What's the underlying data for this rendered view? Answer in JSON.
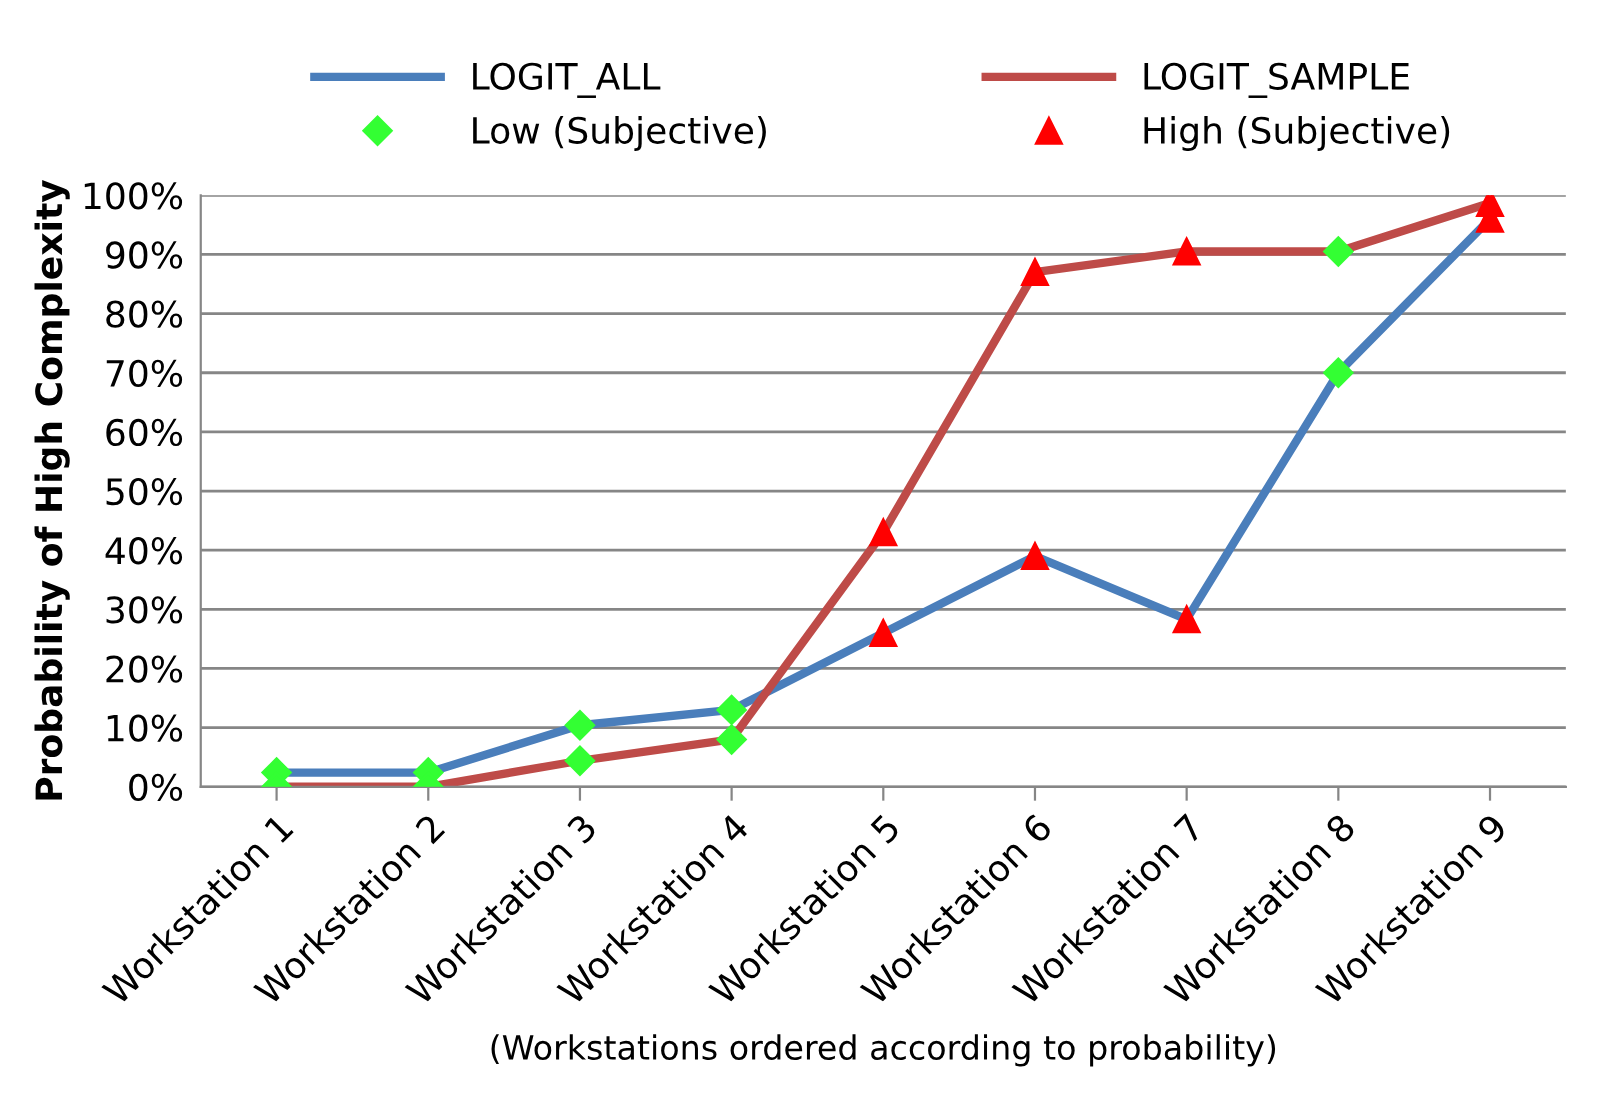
{
  "chart_data": {
    "type": "line",
    "xlabel": "(Workstations ordered according to probability)",
    "ylabel": "Probability of High Complexity",
    "categories": [
      "Workstation 1",
      "Workstation 2",
      "Workstation 3",
      "Workstation 4",
      "Workstation 5",
      "Workstation 6",
      "Workstation 7",
      "Workstation 8",
      "Workstation 9"
    ],
    "series": [
      {
        "name": "LOGIT_ALL",
        "color": "#4a7ebb",
        "marker": "none",
        "values": [
          2.4,
          2.4,
          10.4,
          13,
          26,
          39,
          28.3,
          70,
          96
        ]
      },
      {
        "name": "LOGIT_SAMPLE",
        "color": "#be4b48",
        "marker": "none",
        "values": [
          0,
          0,
          4.4,
          8,
          43,
          87,
          90.5,
          90.5,
          98.7
        ]
      },
      {
        "name": "Low (Subjective)",
        "type": "scatter",
        "color": "#33ff33",
        "marker": "diamond",
        "x": [
          "Workstation 1",
          "Workstation 1",
          "Workstation 2",
          "Workstation 2",
          "Workstation 3",
          "Workstation 3",
          "Workstation 4",
          "Workstation 4",
          "Workstation 8",
          "Workstation 8"
        ],
        "values": [
          2.4,
          0,
          2.4,
          0,
          10.4,
          4.4,
          13,
          8,
          70,
          90.5
        ]
      },
      {
        "name": "High (Subjective)",
        "type": "scatter",
        "color": "#ff0000",
        "marker": "triangle",
        "x": [
          "Workstation 5",
          "Workstation 5",
          "Workstation 6",
          "Workstation 6",
          "Workstation 7",
          "Workstation 7",
          "Workstation 9",
          "Workstation 9"
        ],
        "values": [
          26,
          43,
          39,
          87,
          28.3,
          90.5,
          96,
          98.7
        ]
      }
    ],
    "ylim": [
      0,
      100
    ],
    "yticks": [
      {
        "value": 0,
        "label": "0%"
      },
      {
        "value": 10,
        "label": "10%"
      },
      {
        "value": 20,
        "label": "20%"
      },
      {
        "value": 30,
        "label": "30%"
      },
      {
        "value": 40,
        "label": "40%"
      },
      {
        "value": 50,
        "label": "50%"
      },
      {
        "value": 60,
        "label": "60%"
      },
      {
        "value": 70,
        "label": "70%"
      },
      {
        "value": 80,
        "label": "80%"
      },
      {
        "value": 90,
        "label": "90%"
      },
      {
        "value": 100,
        "label": "100%"
      }
    ],
    "grid": "y",
    "legend": "top"
  }
}
